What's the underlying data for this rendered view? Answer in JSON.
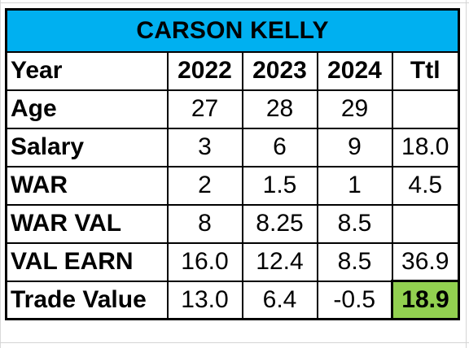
{
  "title": "CARSON KELLY",
  "colors": {
    "title_bg": "#00b0f0",
    "highlight_bg": "#92d050",
    "border": "#000000"
  },
  "header": {
    "label": "Year",
    "years": [
      "2022",
      "2023",
      "2024"
    ],
    "total": "Ttl"
  },
  "rows": [
    {
      "label": "Age",
      "values": [
        "27",
        "28",
        "29"
      ],
      "total": ""
    },
    {
      "label": "Salary",
      "values": [
        "3",
        "6",
        "9"
      ],
      "total": "18.0"
    },
    {
      "label": "WAR",
      "values": [
        "2",
        "1.5",
        "1"
      ],
      "total": "4.5"
    },
    {
      "label": "WAR VAL",
      "values": [
        "8",
        "8.25",
        "8.5"
      ],
      "total": ""
    },
    {
      "label": "VAL EARN",
      "values": [
        "16.0",
        "12.4",
        "8.5"
      ],
      "total": "36.9"
    },
    {
      "label": "Trade Value",
      "values": [
        "13.0",
        "6.4",
        "-0.5"
      ],
      "total": "18.9"
    }
  ]
}
